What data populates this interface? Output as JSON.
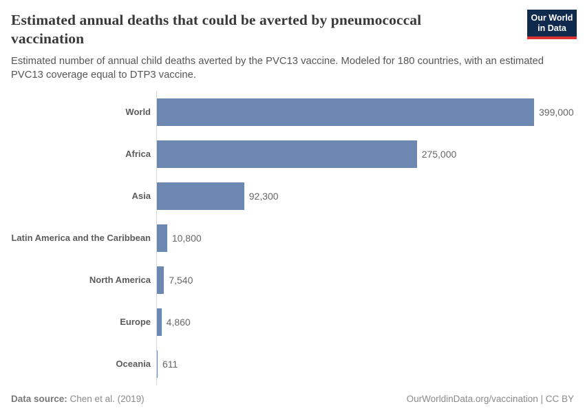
{
  "header": {
    "title": "Estimated annual deaths that could be averted by pneumococcal vaccination",
    "subtitle": "Estimated number of annual child deaths averted by the PVC13 vaccine. Modeled for 180 countries, with an estimated PVC13 coverage equal to DTP3 vaccine.",
    "logo": {
      "line1": "Our World",
      "line2": "in Data"
    }
  },
  "chart_data": {
    "type": "bar",
    "orientation": "horizontal",
    "categories": [
      "World",
      "Africa",
      "Asia",
      "Latin America and the Caribbean",
      "North America",
      "Europe",
      "Oceania"
    ],
    "values": [
      399000,
      275000,
      92300,
      10800,
      7540,
      4860,
      611
    ],
    "value_labels": [
      "399,000",
      "275,000",
      "92,300",
      "10,800",
      "7,540",
      "4,860",
      "611"
    ],
    "title": "Estimated annual deaths that could be averted by pneumococcal vaccination",
    "xlabel": "",
    "ylabel": "",
    "xlim": [
      0,
      399000
    ],
    "grid": false,
    "legend": false,
    "bar_color": "#6d88b0"
  },
  "footer": {
    "source_label": "Data source:",
    "source_value": " Chen et al. (2019)",
    "link": "OurWorldinData.org/vaccination",
    "license": " | CC BY"
  },
  "colors": {
    "bar": "#6d88b0",
    "logo_bg": "#102a4e",
    "logo_red": "#dc3232",
    "axis": "#d8d8d8",
    "title_text": "#383838",
    "subtitle_text": "#565656"
  }
}
